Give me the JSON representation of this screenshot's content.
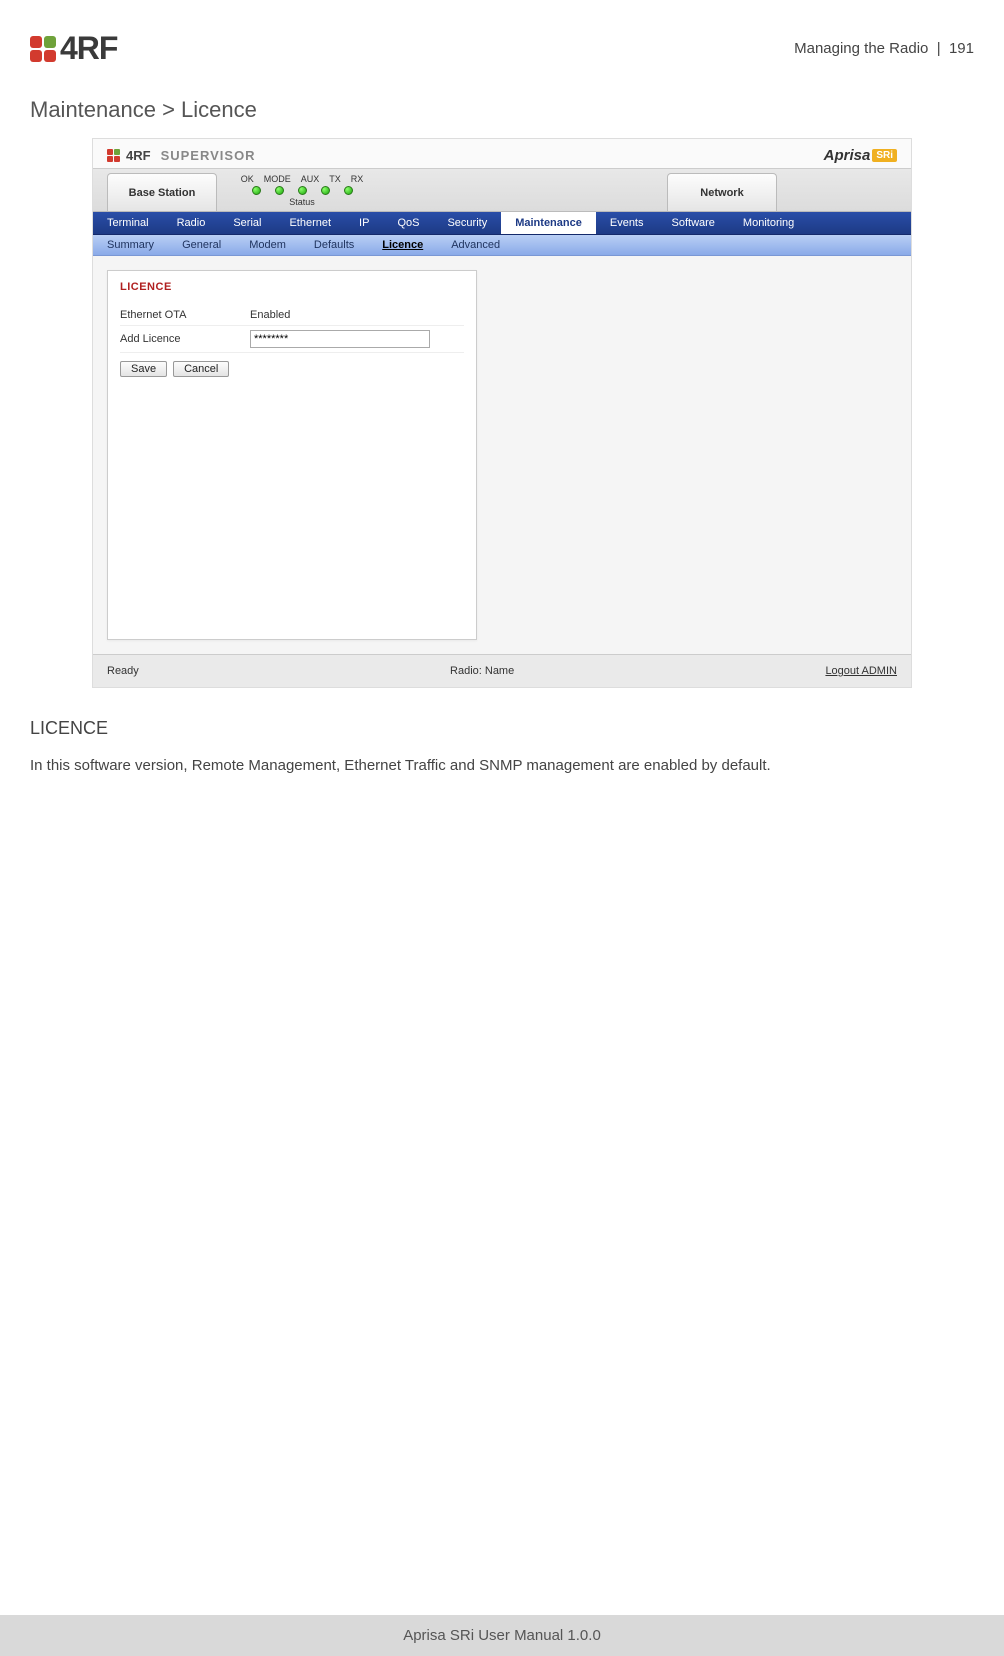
{
  "header": {
    "section": "Managing the Radio",
    "separator": "|",
    "page_number": "191",
    "logo_text": "4RF",
    "logo_colors": {
      "tl": "#d23a2e",
      "tr": "#6fa23a",
      "bl": "#d23a2e",
      "br": "#d23a2e"
    }
  },
  "breadcrumb": "Maintenance > Licence",
  "screenshot": {
    "brand": {
      "logo_text": "4RF",
      "supervisor": "SUPERVISOR",
      "product": "Aprisa",
      "badge": "SRi"
    },
    "status": {
      "left_tab": "Base Station",
      "right_tab": "Network",
      "led_labels": [
        "OK",
        "MODE",
        "AUX",
        "TX",
        "RX"
      ],
      "status_label": "Status"
    },
    "nav_primary": [
      "Terminal",
      "Radio",
      "Serial",
      "Ethernet",
      "IP",
      "QoS",
      "Security",
      "Maintenance",
      "Events",
      "Software",
      "Monitoring"
    ],
    "nav_primary_active": "Maintenance",
    "nav_secondary": [
      "Summary",
      "General",
      "Modem",
      "Defaults",
      "Licence",
      "Advanced"
    ],
    "nav_secondary_active": "Licence",
    "panel": {
      "title": "LICENCE",
      "rows": [
        {
          "label": "Ethernet OTA",
          "value": "Enabled"
        },
        {
          "label": "Add Licence",
          "input_value": "********"
        }
      ],
      "buttons": {
        "save": "Save",
        "cancel": "Cancel"
      }
    },
    "footer": {
      "left": "Ready",
      "center": "Radio: Name",
      "right": "Logout ADMIN"
    }
  },
  "section_heading": "LICENCE",
  "body_text": "In this software version, Remote Management, Ethernet Traffic and SNMP management are enabled by default.",
  "page_footer": "Aprisa SRi User Manual 1.0.0",
  "colors": {
    "nav_primary_bg": "#1d3a85",
    "nav_secondary_bg": "#8aaae8",
    "panel_title": "#b02020",
    "led_green": "#1aa70a",
    "footer_bg": "#d9d9d9",
    "aprisa_badge": "#f0b020"
  }
}
